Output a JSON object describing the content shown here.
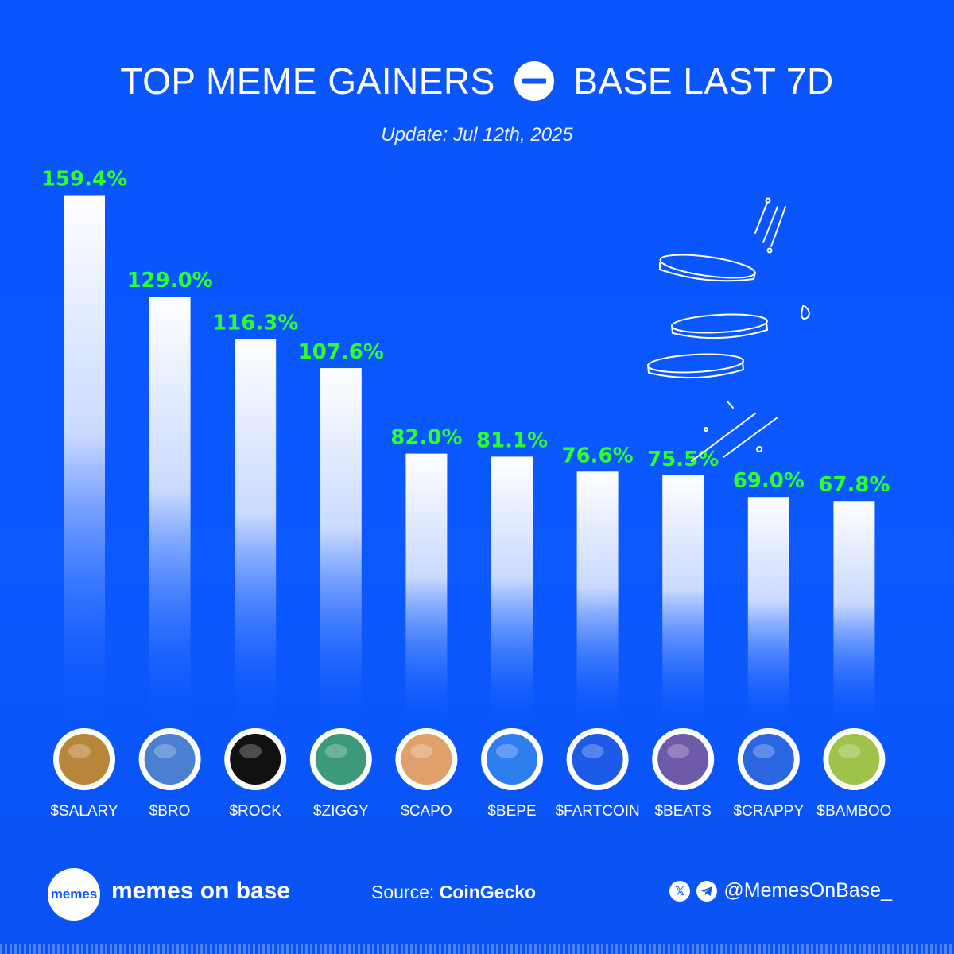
{
  "header": {
    "title_left": "TOP MEME GAINERS",
    "title_right": "BASE LAST 7D",
    "update": "Update: Jul 12th, 2025"
  },
  "colors": {
    "background": "#0b57ff",
    "value_label": "#2cff2c",
    "bar_top": "#ffffff"
  },
  "chart_data": {
    "type": "bar",
    "categories": [
      "$SALARY",
      "$BRO",
      "$ROCK",
      "$ZIGGY",
      "$CAPO",
      "$BEPE",
      "$FARTCOIN",
      "$BEATS",
      "$CRAPPY",
      "$BAMBOO"
    ],
    "values": [
      159.4,
      129.0,
      116.3,
      107.6,
      82.0,
      81.1,
      76.6,
      75.5,
      69.0,
      67.8
    ],
    "labels": [
      "159.4%",
      "129.0%",
      "116.3%",
      "107.6%",
      "82.0%",
      "81.1%",
      "76.6%",
      "75.5%",
      "69.0%",
      "67.8%"
    ],
    "unit": "%",
    "grid": false,
    "legend": "none",
    "icons": [
      "salary-coin-icon",
      "bro-dog-icon",
      "rock-icon",
      "ziggy-frog-icon",
      "capo-avatar-icon",
      "bepe-pepe-icon",
      "fartcoin-icon",
      "beats-koala-icon",
      "crappy-pepe-icon",
      "bamboo-icon"
    ],
    "icon_colors": [
      "#b8863a",
      "#4a7fd1",
      "#111111",
      "#3c9a7a",
      "#e0a06a",
      "#2f7ef0",
      "#1e5ae8",
      "#6e5aa8",
      "#2a66e0",
      "#9ec24a"
    ]
  },
  "footer": {
    "logo_text": "memes",
    "brand": "memes on base",
    "source_label": "Source:",
    "source_name": "CoinGecko",
    "x_icon": "x-icon",
    "telegram_icon": "telegram-icon",
    "handle": "@MemesOnBase_"
  }
}
